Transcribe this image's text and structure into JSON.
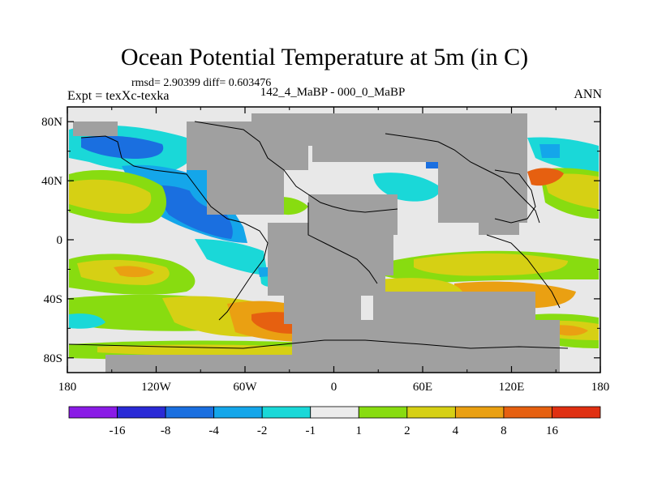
{
  "title": "Ocean Potential Temperature at 5m (in C)",
  "stats": "rmsd= 2.90399  diff= 0.603476",
  "experiment": "Expt = texXc-texka",
  "subtitle": "142_4_MaBP - 000_0_MaBP",
  "season": "ANN",
  "map": {
    "lon_range": [
      -180,
      180
    ],
    "lat_range": [
      -90,
      90
    ],
    "lat_labels": [
      "80N",
      "40N",
      "0",
      "40S",
      "80S"
    ],
    "lat_values": [
      80,
      40,
      0,
      -40,
      -80
    ],
    "lon_labels": [
      "180",
      "120W",
      "60W",
      "0",
      "60E",
      "120E",
      "180"
    ],
    "lon_values": [
      -180,
      -120,
      -60,
      0,
      60,
      120,
      180
    ],
    "land_color": "#a0a0a0",
    "ocean_background": "#e8e8e8"
  },
  "colorbar": {
    "labels": [
      "-16",
      "-8",
      "-4",
      "-2",
      "-1",
      "1",
      "2",
      "4",
      "8",
      "16"
    ],
    "colors": [
      "#8a1be6",
      "#2a2ad6",
      "#1a6fe0",
      "#14a6ea",
      "#1ad8d8",
      "#ececec",
      "#88dc10",
      "#d6d014",
      "#eaa012",
      "#e66010",
      "#e03012"
    ]
  }
}
